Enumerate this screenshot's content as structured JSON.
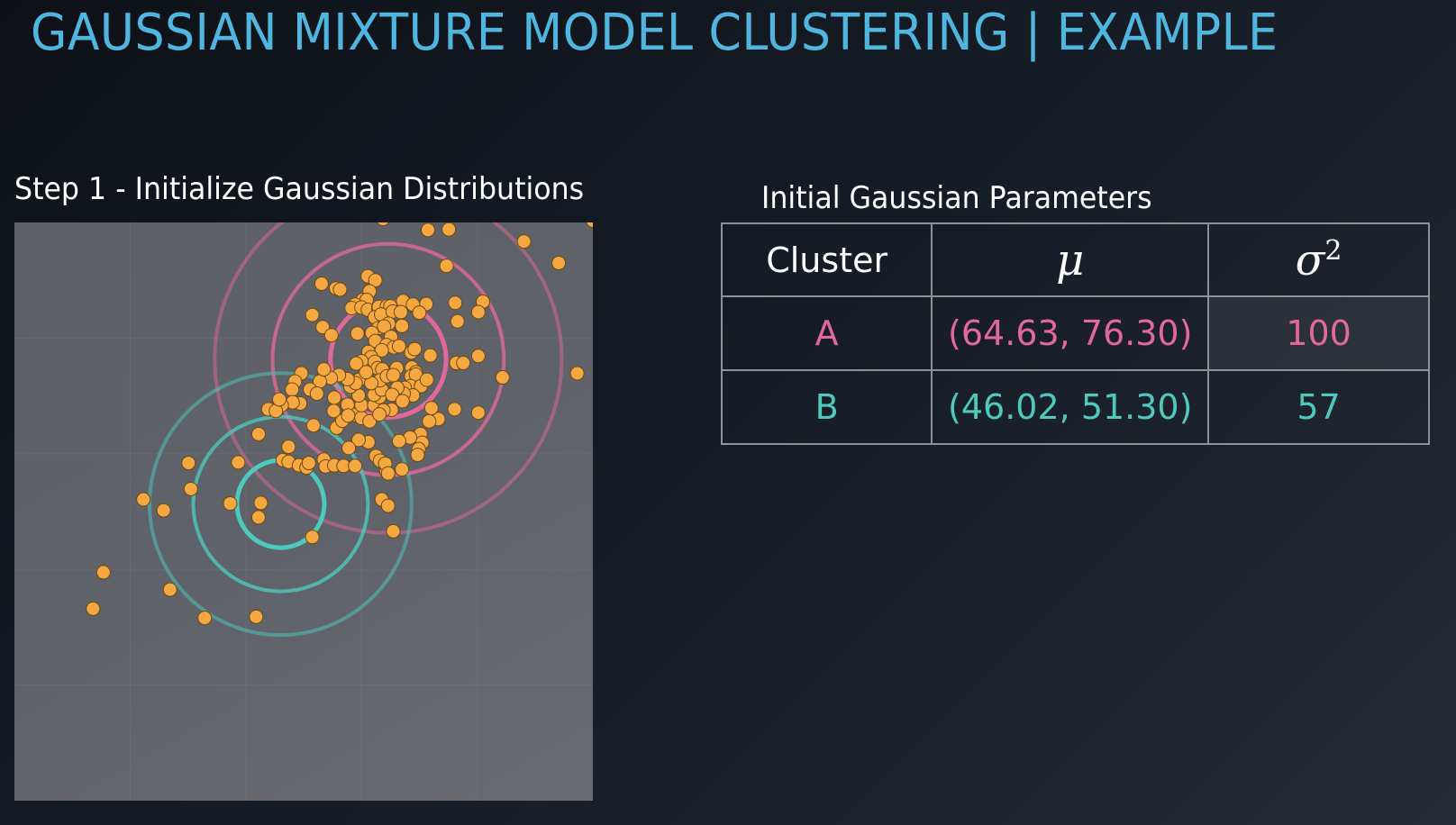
{
  "header": {
    "title": "GAUSSIAN MIXTURE MODEL CLUSTERING | EXAMPLE"
  },
  "plot_section": {
    "title": "Step 1 - Initialize Gaussian Distributions"
  },
  "table_section": {
    "title": "Initial Gaussian Parameters",
    "headers": {
      "cluster": "Cluster",
      "mu": "μ",
      "variance_symbol": "σ",
      "variance_exponent": "2"
    },
    "rows": [
      {
        "cluster": "A",
        "mu": "(64.63, 76.30)",
        "variance": "100",
        "color": "#e0699a"
      },
      {
        "cluster": "B",
        "mu": "(46.02, 51.30)",
        "variance": "57",
        "color": "#4ec9bd"
      }
    ]
  },
  "colors": {
    "title": "#4fb6df",
    "cluster_a": "#e0699a",
    "cluster_b": "#4ec9bd",
    "point_fill": "#f5a841",
    "point_stroke": "#6b4a12"
  },
  "chart_data": {
    "type": "scatter",
    "xlim": [
      0,
      100
    ],
    "ylim": [
      0,
      100
    ],
    "grid": true,
    "points": [
      [
        63.7,
        100.6
      ],
      [
        71.5,
        98.7
      ],
      [
        75.1,
        98.8
      ],
      [
        88.1,
        96.7
      ],
      [
        100.0,
        100.3
      ],
      [
        74.7,
        92.5
      ],
      [
        94.1,
        93.0
      ],
      [
        61.1,
        90.7
      ],
      [
        62.4,
        90.0
      ],
      [
        53.1,
        89.4
      ],
      [
        55.6,
        88.6
      ],
      [
        56.3,
        88.4
      ],
      [
        61.4,
        88.1
      ],
      [
        60.2,
        86.6
      ],
      [
        60.9,
        86.6
      ],
      [
        58.9,
        85.8
      ],
      [
        58.3,
        85.2
      ],
      [
        60.0,
        85.3
      ],
      [
        61.1,
        84.9
      ],
      [
        62.9,
        85.2
      ],
      [
        63.0,
        85.4
      ],
      [
        64.4,
        85.5
      ],
      [
        65.0,
        85.5
      ],
      [
        67.2,
        86.4
      ],
      [
        71.2,
        85.9
      ],
      [
        76.2,
        86.1
      ],
      [
        81.0,
        86.3
      ],
      [
        76.6,
        82.9
      ],
      [
        80.2,
        84.5
      ],
      [
        62.3,
        83.6
      ],
      [
        63.4,
        84.1
      ],
      [
        65.4,
        84.6
      ],
      [
        66.8,
        84.5
      ],
      [
        68.9,
        85.8
      ],
      [
        70.0,
        84.4
      ],
      [
        62.9,
        81.7
      ],
      [
        67.0,
        82.1
      ],
      [
        64.7,
        82.5
      ],
      [
        63.9,
        82.0
      ],
      [
        65.1,
        80.2
      ],
      [
        61.8,
        80.9
      ],
      [
        59.3,
        80.8
      ],
      [
        51.5,
        84.0
      ],
      [
        53.3,
        81.9
      ],
      [
        54.8,
        80.5
      ],
      [
        62.4,
        79.5
      ],
      [
        64.3,
        78.8
      ],
      [
        65.6,
        78.4
      ],
      [
        66.5,
        78.6
      ],
      [
        63.5,
        77.9
      ],
      [
        61.2,
        77.6
      ],
      [
        61.7,
        76.7
      ],
      [
        62.3,
        75.9
      ],
      [
        60.0,
        76.0
      ],
      [
        59.1,
        75.6
      ],
      [
        62.8,
        74.8
      ],
      [
        63.6,
        74.6
      ],
      [
        66.1,
        74.8
      ],
      [
        68.6,
        77.5
      ],
      [
        69.2,
        78.1
      ],
      [
        71.9,
        77.0
      ],
      [
        68.7,
        74.9
      ],
      [
        69.4,
        74.1
      ],
      [
        68.6,
        73.4
      ],
      [
        69.4,
        73.7
      ],
      [
        68.5,
        71.7
      ],
      [
        67.5,
        71.4
      ],
      [
        70.3,
        71.7
      ],
      [
        68.9,
        70.1
      ],
      [
        67.3,
        70.4
      ],
      [
        71.3,
        72.8
      ],
      [
        76.4,
        75.7
      ],
      [
        77.6,
        75.7
      ],
      [
        80.2,
        76.9
      ],
      [
        84.4,
        73.2
      ],
      [
        97.3,
        73.9
      ],
      [
        76.1,
        67.7
      ],
      [
        80.2,
        67.1
      ],
      [
        73.3,
        66.0
      ],
      [
        72.1,
        67.9
      ],
      [
        71.7,
        65.6
      ],
      [
        70.2,
        63.4
      ],
      [
        70.5,
        61.9
      ],
      [
        69.9,
        60.8
      ],
      [
        69.7,
        59.8
      ],
      [
        68.4,
        62.8
      ],
      [
        66.5,
        62.2
      ],
      [
        67.0,
        57.3
      ],
      [
        64.3,
        57.0
      ],
      [
        62.5,
        59.6
      ],
      [
        61.2,
        62.0
      ],
      [
        59.5,
        62.4
      ],
      [
        57.8,
        61.0
      ],
      [
        55.7,
        64.5
      ],
      [
        56.7,
        65.7
      ],
      [
        55.2,
        67.4
      ],
      [
        55.3,
        69.7
      ],
      [
        57.6,
        68.5
      ],
      [
        58.9,
        66.7
      ],
      [
        57.7,
        66.6
      ],
      [
        60.0,
        66.2
      ],
      [
        61.4,
        65.6
      ],
      [
        60.0,
        68.4
      ],
      [
        62.2,
        68.4
      ],
      [
        63.1,
        69.8
      ],
      [
        62.2,
        70.2
      ],
      [
        63.5,
        71.1
      ],
      [
        63.2,
        72.7
      ],
      [
        64.4,
        73.4
      ],
      [
        65.5,
        73.6
      ],
      [
        66.2,
        71.4
      ],
      [
        65.3,
        70.2
      ],
      [
        67.1,
        69.1
      ],
      [
        65.2,
        67.6
      ],
      [
        63.8,
        67.5
      ],
      [
        63.1,
        66.8
      ],
      [
        59.5,
        70.1
      ],
      [
        58.1,
        71.6
      ],
      [
        59.6,
        72.8
      ],
      [
        61.7,
        72.2
      ],
      [
        60.8,
        74.1
      ],
      [
        59.0,
        72.2
      ],
      [
        57.6,
        72.9
      ],
      [
        56.1,
        73.6
      ],
      [
        54.7,
        73.1
      ],
      [
        52.8,
        72.5
      ],
      [
        49.6,
        73.9
      ],
      [
        48.5,
        72.5
      ],
      [
        48.0,
        71.1
      ],
      [
        51.1,
        71.1
      ],
      [
        53.5,
        74.6
      ],
      [
        52.3,
        70.4
      ],
      [
        49.4,
        68.7
      ],
      [
        48.1,
        68.9
      ],
      [
        46.2,
        68.4
      ],
      [
        44.2,
        67.7
      ],
      [
        42.2,
        63.4
      ],
      [
        47.4,
        61.2
      ],
      [
        51.7,
        64.9
      ],
      [
        46.4,
        58.9
      ],
      [
        47.4,
        58.6
      ],
      [
        49.2,
        58.0
      ],
      [
        50.5,
        57.6
      ],
      [
        50.9,
        58.4
      ],
      [
        53.5,
        59.0
      ],
      [
        53.8,
        57.8
      ],
      [
        55.3,
        58.0
      ],
      [
        56.9,
        57.9
      ],
      [
        58.9,
        57.9
      ],
      [
        63.2,
        58.8
      ],
      [
        64.1,
        58.3
      ],
      [
        64.6,
        56.6
      ],
      [
        63.5,
        52.1
      ],
      [
        64.6,
        51.0
      ],
      [
        65.5,
        46.6
      ],
      [
        51.5,
        45.6
      ],
      [
        42.2,
        49.0
      ],
      [
        42.6,
        51.5
      ],
      [
        37.3,
        51.4
      ],
      [
        30.5,
        53.9
      ],
      [
        22.3,
        52.1
      ],
      [
        30.1,
        58.4
      ],
      [
        38.7,
        58.5
      ],
      [
        25.8,
        50.2
      ],
      [
        15.4,
        39.5
      ],
      [
        26.9,
        36.5
      ],
      [
        13.6,
        33.2
      ],
      [
        32.9,
        31.6
      ],
      [
        41.8,
        31.8
      ],
      [
        43.9,
        67.7
      ],
      [
        45.2,
        67.4
      ],
      [
        45.8,
        69.4
      ]
    ],
    "gaussians": [
      {
        "cluster": "A",
        "mean": [
          64.63,
          76.3
        ],
        "variance": 100,
        "sigma_rings": [
          1,
          2,
          3
        ]
      },
      {
        "cluster": "B",
        "mean": [
          46.02,
          51.3
        ],
        "variance": 57,
        "sigma_rings": [
          1,
          2,
          3
        ]
      }
    ]
  }
}
